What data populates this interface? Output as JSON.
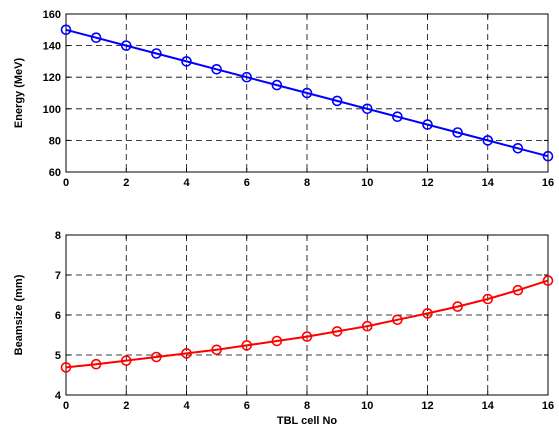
{
  "chart_data": [
    {
      "type": "line",
      "title": "",
      "xlabel": "",
      "ylabel": "Energy (MeV)",
      "xlim": [
        0,
        16
      ],
      "ylim": [
        60,
        160
      ],
      "xticks": [
        0,
        2,
        4,
        6,
        8,
        10,
        12,
        14,
        16
      ],
      "yticks": [
        60,
        80,
        100,
        120,
        140,
        160
      ],
      "grid": true,
      "series": [
        {
          "color": "#0000ff",
          "marker": "circle",
          "x": [
            0,
            1,
            2,
            3,
            4,
            5,
            6,
            7,
            8,
            9,
            10,
            11,
            12,
            13,
            14,
            15,
            16
          ],
          "y": [
            150,
            145,
            140,
            135,
            130,
            125,
            120,
            115,
            110,
            105,
            100,
            95,
            90,
            85,
            80,
            75,
            70
          ]
        }
      ]
    },
    {
      "type": "line",
      "title": "",
      "xlabel": "TBL cell No",
      "ylabel": "Beamsize (mm)",
      "xlim": [
        0,
        16
      ],
      "ylim": [
        4,
        8
      ],
      "xticks": [
        0,
        2,
        4,
        6,
        8,
        10,
        12,
        14,
        16
      ],
      "yticks": [
        4,
        5,
        6,
        7,
        8
      ],
      "grid": true,
      "series": [
        {
          "color": "#ff0000",
          "marker": "circle",
          "x": [
            0,
            1,
            2,
            3,
            4,
            5,
            6,
            7,
            8,
            9,
            10,
            11,
            12,
            13,
            14,
            15,
            16
          ],
          "y": [
            4.69,
            4.77,
            4.86,
            4.95,
            5.04,
            5.13,
            5.24,
            5.35,
            5.46,
            5.59,
            5.72,
            5.88,
            6.04,
            6.21,
            6.4,
            6.62,
            6.86
          ]
        }
      ]
    }
  ]
}
